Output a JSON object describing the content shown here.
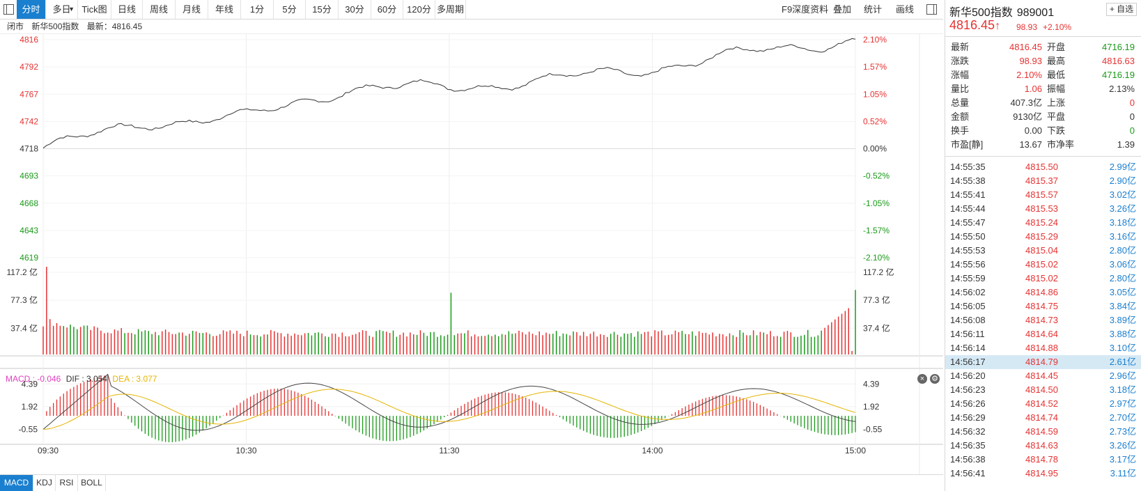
{
  "toolbar": {
    "tabs": [
      "分时",
      "多日",
      "Tick图",
      "日线",
      "周线",
      "月线",
      "年线",
      "1分",
      "5分",
      "15分",
      "30分",
      "60分",
      "120分",
      "多周期"
    ],
    "active": "分时",
    "multi_day_arrow": "▼",
    "right_items": [
      "F9深度资料",
      "叠加",
      "统计",
      "画线"
    ]
  },
  "status": {
    "state": "闭市",
    "name": "新华500指数",
    "latest_label": "最新：4816.45"
  },
  "price_axis": {
    "left": [
      "4816",
      "4792",
      "4767",
      "4742",
      "4718",
      "4693",
      "4668",
      "4643",
      "4619"
    ],
    "right": [
      "2.10%",
      "1.57%",
      "1.05%",
      "0.52%",
      "0.00%",
      "-0.52%",
      "-1.05%",
      "-1.57%",
      "-2.10%"
    ]
  },
  "volume_axis": {
    "labels": [
      "117.2 亿",
      "77.3 亿",
      "37.4 亿"
    ]
  },
  "macd": {
    "legend": {
      "macd": "MACD : -0.046",
      "dif": "DIF : 3.054",
      "dea": "DEA : 3.077"
    },
    "axis": [
      "4.39",
      "1.92",
      "-0.55"
    ],
    "close_icon": "close-icon",
    "settings_icon": "gear-icon"
  },
  "time_axis": [
    "09:30",
    "10:30",
    "11:30",
    "14:00",
    "15:00"
  ],
  "bottom_tabs": [
    "MACD",
    "KDJ",
    "RSI",
    "BOLL"
  ],
  "colors": {
    "up": "#e63232",
    "down": "#1a9a1a",
    "accent": "#1a7fcf",
    "price_line": "#333333",
    "dea": "#e6b400",
    "macd_label": "#e040c0"
  },
  "chart_data": {
    "type": "line",
    "x": [
      "09:30",
      "10:00",
      "10:30",
      "11:00",
      "11:30",
      "13:30",
      "14:00",
      "14:30",
      "15:00"
    ],
    "price": [
      4718,
      4741,
      4746,
      4772,
      4773,
      4780,
      4790,
      4805,
      4816.45
    ],
    "prev_close": 4718,
    "ylim": [
      4619,
      4816
    ],
    "volume_ylim": [
      0,
      130
    ],
    "macd_ylim": [
      -1.8,
      6
    ]
  },
  "quote": {
    "name": "新华500指数",
    "code": "989001",
    "add_label": "+ 自选",
    "price": "4816.45",
    "arrow": "↑",
    "change": "98.93",
    "change_pct": "+2.10%",
    "stats": [
      {
        "l1": "最新",
        "v1": "4816.45",
        "c1": "red",
        "l2": "开盘",
        "v2": "4716.19",
        "c2": "green"
      },
      {
        "l1": "涨跌",
        "v1": "98.93",
        "c1": "red",
        "l2": "最高",
        "v2": "4816.63",
        "c2": "red"
      },
      {
        "l1": "涨幅",
        "v1": "2.10%",
        "c1": "red",
        "l2": "最低",
        "v2": "4716.19",
        "c2": "green"
      },
      {
        "l1": "量比",
        "v1": "1.06",
        "c1": "red",
        "l2": "振幅",
        "v2": "2.13%",
        "c2": "blk"
      },
      {
        "l1": "总量",
        "v1": "407.3亿",
        "c1": "blk",
        "l2": "上涨",
        "v2": "0",
        "c2": "red"
      },
      {
        "l1": "金额",
        "v1": "9130亿",
        "c1": "blk",
        "l2": "平盘",
        "v2": "0",
        "c2": "blk"
      },
      {
        "l1": "换手",
        "v1": "0.00",
        "c1": "blk",
        "l2": "下跌",
        "v2": "0",
        "c2": "green"
      },
      {
        "l1": "市盈[静]",
        "v1": "13.67",
        "c1": "blk",
        "l2": "市净率",
        "v2": "1.39",
        "c2": "blk"
      }
    ],
    "ticks": [
      {
        "t": "14:55:35",
        "p": "4815.50",
        "v": "2.99亿"
      },
      {
        "t": "14:55:38",
        "p": "4815.37",
        "v": "2.90亿"
      },
      {
        "t": "14:55:41",
        "p": "4815.57",
        "v": "3.02亿"
      },
      {
        "t": "14:55:44",
        "p": "4815.53",
        "v": "3.26亿"
      },
      {
        "t": "14:55:47",
        "p": "4815.24",
        "v": "3.18亿"
      },
      {
        "t": "14:55:50",
        "p": "4815.29",
        "v": "3.16亿"
      },
      {
        "t": "14:55:53",
        "p": "4815.04",
        "v": "2.80亿"
      },
      {
        "t": "14:55:56",
        "p": "4815.02",
        "v": "3.06亿"
      },
      {
        "t": "14:55:59",
        "p": "4815.02",
        "v": "2.80亿"
      },
      {
        "t": "14:56:02",
        "p": "4814.86",
        "v": "3.05亿"
      },
      {
        "t": "14:56:05",
        "p": "4814.75",
        "v": "3.84亿"
      },
      {
        "t": "14:56:08",
        "p": "4814.73",
        "v": "3.89亿"
      },
      {
        "t": "14:56:11",
        "p": "4814.64",
        "v": "3.88亿"
      },
      {
        "t": "14:56:14",
        "p": "4814.88",
        "v": "3.10亿"
      },
      {
        "t": "14:56:17",
        "p": "4814.79",
        "v": "2.61亿"
      },
      {
        "t": "14:56:20",
        "p": "4814.45",
        "v": "2.96亿"
      },
      {
        "t": "14:56:23",
        "p": "4814.50",
        "v": "3.18亿"
      },
      {
        "t": "14:56:26",
        "p": "4814.52",
        "v": "2.97亿"
      },
      {
        "t": "14:56:29",
        "p": "4814.74",
        "v": "2.70亿"
      },
      {
        "t": "14:56:32",
        "p": "4814.59",
        "v": "2.73亿"
      },
      {
        "t": "14:56:35",
        "p": "4814.63",
        "v": "3.26亿"
      },
      {
        "t": "14:56:38",
        "p": "4814.78",
        "v": "3.17亿"
      },
      {
        "t": "14:56:41",
        "p": "4814.95",
        "v": "3.11亿"
      }
    ],
    "highlight_index": 14
  }
}
